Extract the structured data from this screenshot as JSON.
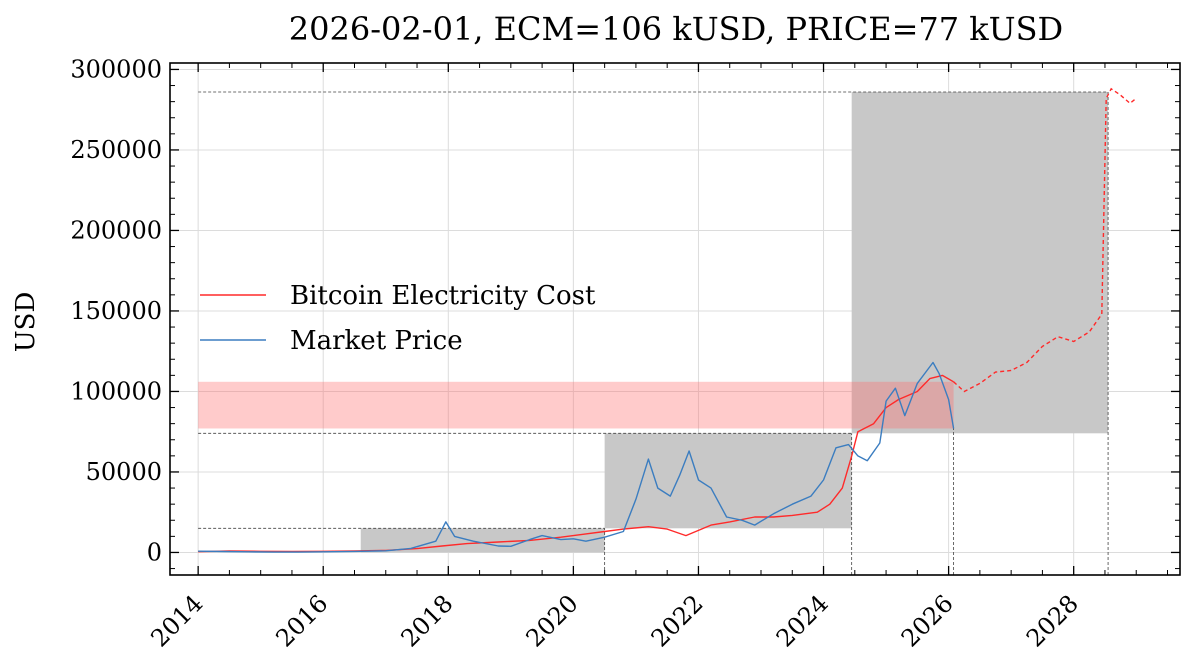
{
  "chart_data": {
    "type": "line",
    "title": "2026-02-01, ECM=106 kUSD, PRICE=77 kUSD",
    "xlabel": "",
    "ylabel": "USD",
    "xlim": [
      2013.55,
      2029.7
    ],
    "ylim": [
      -14000,
      304000
    ],
    "x_ticks": [
      2014,
      2016,
      2018,
      2020,
      2022,
      2024,
      2026,
      2028
    ],
    "x_tick_labels": [
      "2014",
      "2016",
      "2018",
      "2020",
      "2022",
      "2024",
      "2026",
      "2028"
    ],
    "y_ticks": [
      0,
      50000,
      100000,
      150000,
      200000,
      250000,
      300000
    ],
    "y_tick_labels": [
      "0",
      "50000",
      "100000",
      "150000",
      "200000",
      "250000",
      "300000"
    ],
    "grid": true,
    "legend_position": "center-left",
    "series": [
      {
        "name": "Bitcoin Electricity Cost",
        "color": "#ff2a2a",
        "x": [
          2014.0,
          2014.5,
          2015.0,
          2015.5,
          2016.0,
          2016.5,
          2017.0,
          2017.5,
          2017.9,
          2018.3,
          2018.8,
          2019.3,
          2019.8,
          2020.2,
          2020.5,
          2020.8,
          2021.2,
          2021.5,
          2021.8,
          2022.2,
          2022.5,
          2022.9,
          2023.2,
          2023.5,
          2023.9,
          2024.1,
          2024.3,
          2024.45,
          2024.55,
          2024.8,
          2025.0,
          2025.2,
          2025.5,
          2025.7,
          2025.9,
          2026.08
        ],
        "y": [
          500,
          900,
          700,
          600,
          700,
          900,
          1300,
          2400,
          4000,
          5500,
          6500,
          7500,
          9500,
          11500,
          13000,
          14500,
          16000,
          14500,
          10500,
          17000,
          19000,
          22000,
          22000,
          23000,
          25000,
          30000,
          40000,
          60000,
          75000,
          80000,
          90000,
          95000,
          100000,
          108000,
          110000,
          106000
        ],
        "projection": {
          "x": [
            2026.08,
            2026.25,
            2026.5,
            2026.75,
            2027.0,
            2027.25,
            2027.5,
            2027.75,
            2028.0,
            2028.25,
            2028.45,
            2028.52,
            2028.6,
            2028.75,
            2028.9,
            2029.0
          ],
          "y": [
            106000,
            100000,
            105000,
            112000,
            113000,
            118000,
            128000,
            134000,
            131000,
            137000,
            148000,
            282000,
            288000,
            284000,
            279000,
            282000
          ]
        }
      },
      {
        "name": "Market Price",
        "color": "#3b7dc0",
        "x": [
          2014.0,
          2014.4,
          2014.8,
          2015.2,
          2015.6,
          2016.0,
          2016.5,
          2017.0,
          2017.4,
          2017.8,
          2017.96,
          2018.1,
          2018.4,
          2018.8,
          2019.0,
          2019.3,
          2019.5,
          2019.8,
          2020.0,
          2020.2,
          2020.5,
          2020.8,
          2021.0,
          2021.2,
          2021.35,
          2021.55,
          2021.7,
          2021.85,
          2022.0,
          2022.2,
          2022.45,
          2022.7,
          2022.9,
          2023.2,
          2023.5,
          2023.8,
          2024.0,
          2024.2,
          2024.4,
          2024.55,
          2024.7,
          2024.9,
          2025.0,
          2025.15,
          2025.3,
          2025.5,
          2025.75,
          2025.85,
          2026.0,
          2026.08
        ],
        "y": [
          800,
          600,
          400,
          250,
          250,
          400,
          650,
          1000,
          2500,
          7000,
          19000,
          10000,
          7000,
          4000,
          3800,
          8000,
          10500,
          8000,
          8500,
          7000,
          9500,
          13000,
          33000,
          58000,
          40000,
          35000,
          48000,
          63000,
          45000,
          40000,
          22000,
          20000,
          17000,
          24000,
          30000,
          35000,
          45000,
          65000,
          67000,
          60000,
          57000,
          68000,
          94000,
          102000,
          85000,
          105000,
          118000,
          111000,
          95000,
          77000
        ]
      }
    ],
    "shaded_regions": [
      {
        "x": [
          2016.6,
          2020.5
        ],
        "y": [
          0,
          15000
        ],
        "color": "#c8c8c8"
      },
      {
        "x": [
          2020.5,
          2024.45
        ],
        "y": [
          15000,
          74000
        ],
        "color": "#c8c8c8"
      },
      {
        "x": [
          2024.45,
          2028.55
        ],
        "y": [
          74000,
          286000
        ],
        "color": "#c8c8c8"
      },
      {
        "x": [
          2014.0,
          2026.08
        ],
        "y": [
          77000,
          106000
        ],
        "color": "#ff6b6b",
        "opacity": 0.35
      }
    ],
    "reference_lines": [
      {
        "orientation": "horizontal",
        "y": 15000,
        "x": [
          2014.0,
          2020.5
        ]
      },
      {
        "orientation": "horizontal",
        "y": 74000,
        "x": [
          2014.0,
          2024.45
        ]
      },
      {
        "orientation": "horizontal",
        "y": 286000,
        "x": [
          2014.0,
          2028.55
        ]
      },
      {
        "orientation": "vertical",
        "x": 2020.5,
        "y": [
          -14000,
          15000
        ]
      },
      {
        "orientation": "vertical",
        "x": 2024.45,
        "y": [
          -14000,
          74000
        ]
      },
      {
        "orientation": "vertical",
        "x": 2026.08,
        "y": [
          -14000,
          77000
        ]
      },
      {
        "orientation": "vertical",
        "x": 2028.55,
        "y": [
          -14000,
          286000
        ]
      }
    ]
  }
}
